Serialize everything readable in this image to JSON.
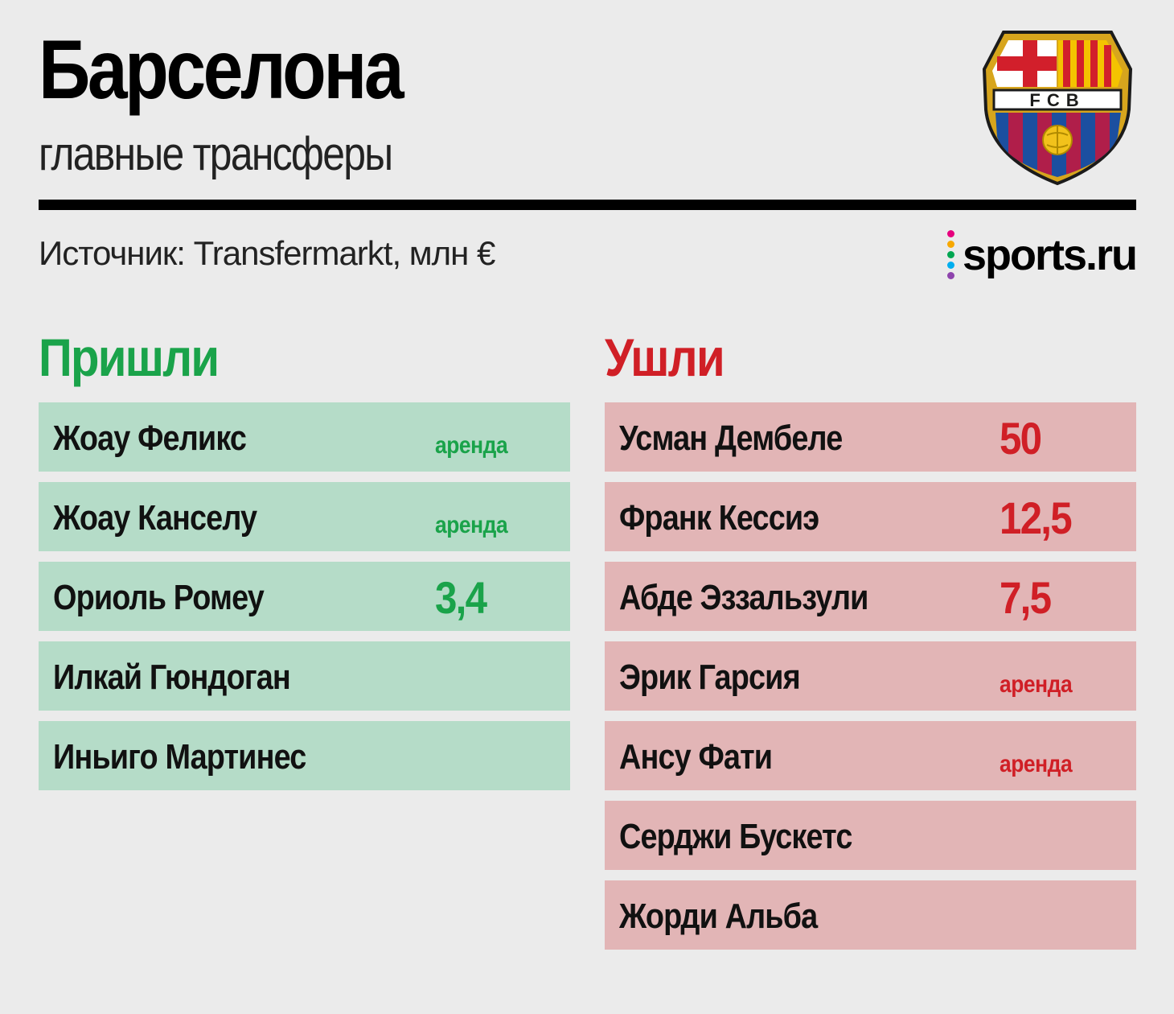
{
  "header": {
    "title": "Барселона",
    "subtitle": "главные трансферы",
    "source": "Источник: Transfermarkt, млн €",
    "brand": "sports.ru",
    "logo_text": "FCB"
  },
  "colors": {
    "background": "#ebebeb",
    "incoming_accent": "#1aa34a",
    "outgoing_accent": "#d01f26",
    "incoming_row": "#b5dcc8",
    "outgoing_row": "#e2b5b6",
    "brand_dots": [
      "#e6007e",
      "#f7a800",
      "#00a651",
      "#00aeef",
      "#8e44ad"
    ]
  },
  "incoming": {
    "heading": "Пришли",
    "rows": [
      {
        "name": "Жоау Феликс",
        "fee": "",
        "loan": "аренда"
      },
      {
        "name": "Жоау Канселу",
        "fee": "",
        "loan": "аренда"
      },
      {
        "name": "Ориоль Ромеу",
        "fee": "3,4",
        "loan": ""
      },
      {
        "name": "Илкай Гюндоган",
        "fee": "",
        "loan": ""
      },
      {
        "name": "Иньиго Мартинес",
        "fee": "",
        "loan": ""
      }
    ]
  },
  "outgoing": {
    "heading": "Ушли",
    "rows": [
      {
        "name": "Усман Дембеле",
        "fee": "50",
        "loan": ""
      },
      {
        "name": "Франк Кессиэ",
        "fee": "12,5",
        "loan": ""
      },
      {
        "name": "Абде Эззальзули",
        "fee": "7,5",
        "loan": ""
      },
      {
        "name": "Эрик Гарсия",
        "fee": "",
        "loan": "аренда"
      },
      {
        "name": "Ансу Фати",
        "fee": "",
        "loan": "аренда"
      },
      {
        "name": "Серджи Бускетс",
        "fee": "",
        "loan": ""
      },
      {
        "name": "Жорди Альба",
        "fee": "",
        "loan": ""
      }
    ]
  }
}
